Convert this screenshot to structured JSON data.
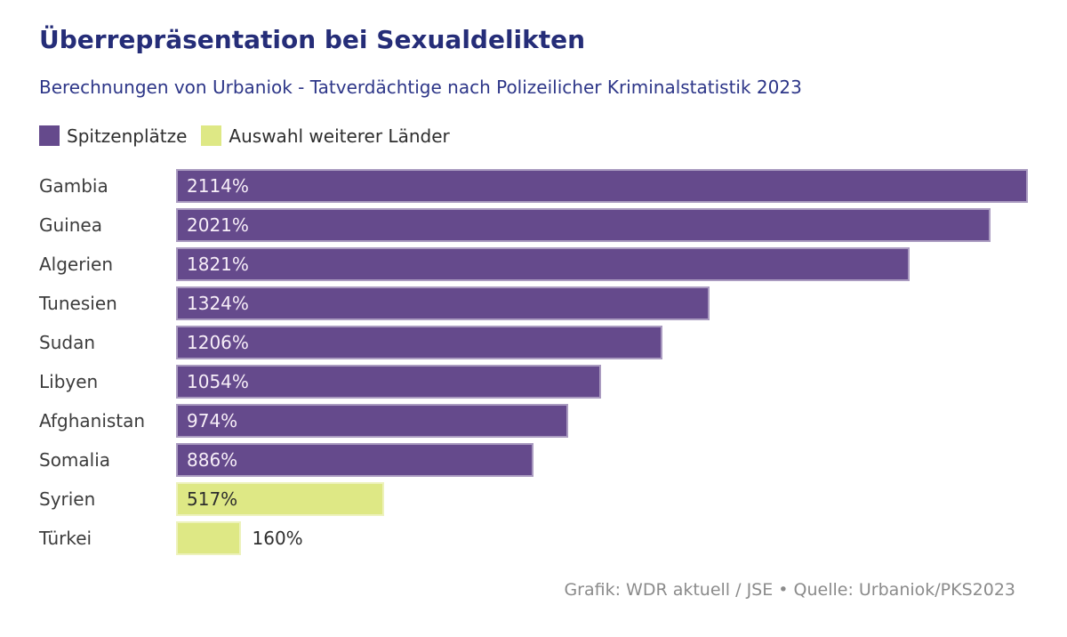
{
  "header": {
    "title": "Überrepräsentation bei Sexualdelikten",
    "subtitle": "Berechnungen von Urbaniok - Tatverdächtige nach Polizeilicher Kriminalstatistik 2023"
  },
  "chart_data": {
    "type": "bar",
    "orientation": "horizontal",
    "title": "Überrepräsentation bei Sexualdelikten",
    "subtitle": "Berechnungen von Urbaniok - Tatverdächtige nach Polizeilicher Kriminalstatistik 2023",
    "unit": "%",
    "xlim": [
      0,
      2114
    ],
    "grid": false,
    "legend_position": "top-left",
    "legend_order": [
      "top",
      "other"
    ],
    "groups": {
      "top": {
        "name": "Spitzenplätze",
        "color": "#654a8c",
        "value_color": "#f7eef8"
      },
      "other": {
        "name": "Auswahl weiterer Länder",
        "color": "#dee885",
        "value_color": "#2e2e2e"
      }
    },
    "categories": [
      "Gambia",
      "Guinea",
      "Algerien",
      "Tunesien",
      "Sudan",
      "Libyen",
      "Afghanistan",
      "Somalia",
      "Syrien",
      "Türkei"
    ],
    "values": [
      2114,
      2021,
      1821,
      1324,
      1206,
      1054,
      974,
      886,
      517,
      160
    ],
    "rows": [
      {
        "label": "Gambia",
        "value": 2114,
        "display": "2114%",
        "group": "top",
        "value_position": "inside"
      },
      {
        "label": "Guinea",
        "value": 2021,
        "display": "2021%",
        "group": "top",
        "value_position": "inside"
      },
      {
        "label": "Algerien",
        "value": 1821,
        "display": "1821%",
        "group": "top",
        "value_position": "inside"
      },
      {
        "label": "Tunesien",
        "value": 1324,
        "display": "1324%",
        "group": "top",
        "value_position": "inside"
      },
      {
        "label": "Sudan",
        "value": 1206,
        "display": "1206%",
        "group": "top",
        "value_position": "inside"
      },
      {
        "label": "Libyen",
        "value": 1054,
        "display": "1054%",
        "group": "top",
        "value_position": "inside"
      },
      {
        "label": "Afghanistan",
        "value": 974,
        "display": "974%",
        "group": "top",
        "value_position": "inside"
      },
      {
        "label": "Somalia",
        "value": 886,
        "display": "886%",
        "group": "top",
        "value_position": "inside"
      },
      {
        "label": "Syrien",
        "value": 517,
        "display": "517%",
        "group": "other",
        "value_position": "inside"
      },
      {
        "label": "Türkei",
        "value": 160,
        "display": "160%",
        "group": "other",
        "value_position": "outside"
      }
    ]
  },
  "footer": {
    "credit": "Grafik: WDR aktuell / JSE • Quelle: Urbaniok/PKS2023"
  }
}
